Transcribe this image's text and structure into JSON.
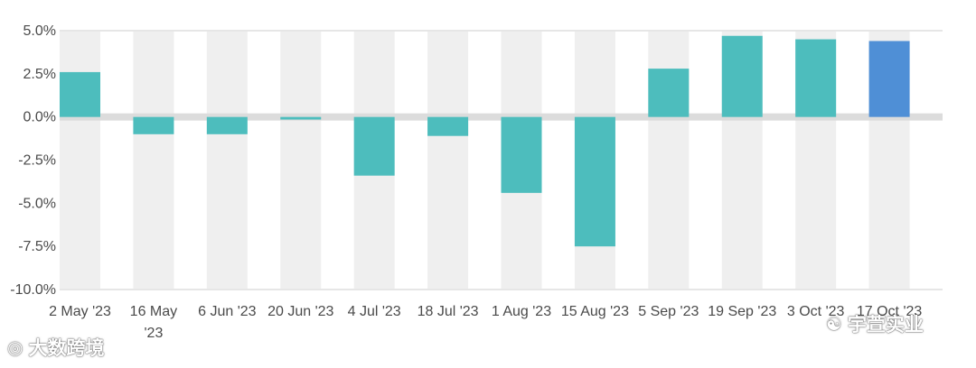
{
  "chart_data": {
    "type": "bar",
    "categories": [
      "2 May '23",
      "16 May '23",
      "6 Jun '23",
      "20 Jun '23",
      "4 Jul '23",
      "18 Jul '23",
      "1 Aug '23",
      "15 Aug '23",
      "5 Sep '23",
      "19 Sep '23",
      "3 Oct '23",
      "17 Oct '23"
    ],
    "category_lines": [
      [
        "2 May '23"
      ],
      [
        "16 May",
        "'23"
      ],
      [
        "6 Jun '23"
      ],
      [
        "20 Jun '23"
      ],
      [
        "4 Jul '23"
      ],
      [
        "18 Jul '23"
      ],
      [
        "1 Aug '23"
      ],
      [
        "15 Aug '23"
      ],
      [
        "5 Sep '23"
      ],
      [
        "19 Sep '23"
      ],
      [
        "3 Oct '23"
      ],
      [
        "17 Oct '23"
      ]
    ],
    "values": [
      2.6,
      -1.0,
      -1.0,
      -0.15,
      -3.4,
      -1.1,
      -4.4,
      -7.5,
      2.8,
      4.7,
      4.5,
      4.4
    ],
    "ylim": [
      -10,
      5
    ],
    "yticks": [
      5,
      2.5,
      0,
      -2.5,
      -5,
      -7.5,
      -10
    ],
    "ytick_labels": [
      "5.0%",
      "2.5%",
      "0.0%",
      "-2.5%",
      "-5.0%",
      "-7.5%",
      "-10.0%"
    ],
    "highlight_index": 11,
    "colors": {
      "bar": "#4dbdbd",
      "highlight": "#4f8fd6",
      "band": "#efefef",
      "zero_line": "#dcdcdc",
      "grid": "#e6e6e6"
    },
    "title": "",
    "xlabel": "",
    "ylabel": "",
    "grid": true
  },
  "watermarks": {
    "left": {
      "icon": "weibo-icon",
      "text": "大数跨境"
    },
    "right": {
      "icon": "wechat-icon",
      "text": "宇萱实业"
    }
  }
}
